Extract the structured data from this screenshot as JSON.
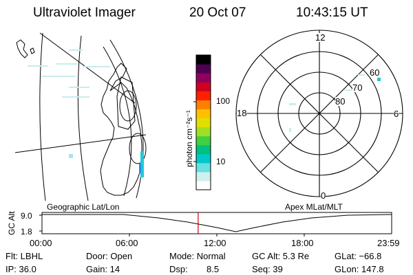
{
  "header": {
    "title": "Ultraviolet Imager",
    "date": "20 Oct 07",
    "time": "10:43:15 UT"
  },
  "colorbar": {
    "unit_label": "photon cm⁻²s⁻¹",
    "ticks": [
      "100",
      "10"
    ],
    "colors": [
      "#ffffff",
      "#d0f0f0",
      "#66e0e0",
      "#00c8c8",
      "#00c080",
      "#40d040",
      "#a0e020",
      "#e0e000",
      "#ffc000",
      "#ff8000",
      "#ff2000",
      "#d00020",
      "#900060",
      "#500050",
      "#000000"
    ]
  },
  "polar_plot": {
    "clock_labels": {
      "top": "12",
      "right": "6",
      "bottom": "0",
      "left": "18"
    },
    "lat_labels": [
      "60",
      "70",
      "80"
    ]
  },
  "panel_labels": {
    "left": "Geographic Lat/Lon",
    "right": "Apex MLat/MLT"
  },
  "altitude_strip": {
    "axis_label": "GC Alt",
    "y_ticks": [
      "9.0",
      "1.8"
    ],
    "x_ticks": [
      "00:00",
      "06:00",
      "12:00",
      "18:00",
      "23:59"
    ],
    "marker_time_hours": 10.72
  },
  "status": {
    "row1": {
      "flt": "Flt: LBHL",
      "door": "Door: Open",
      "mode": "Mode: Normal",
      "gc_alt": "GC Alt: 5.3 Re",
      "glat": "GLat: −66.8"
    },
    "row2": {
      "ip": "IP: 36.0",
      "gain": "Gain: 14",
      "dsp_label": "Dsp:",
      "dsp_value": "8.5",
      "seq": "Seq: 39",
      "glon": "GLon: 147.8"
    }
  }
}
